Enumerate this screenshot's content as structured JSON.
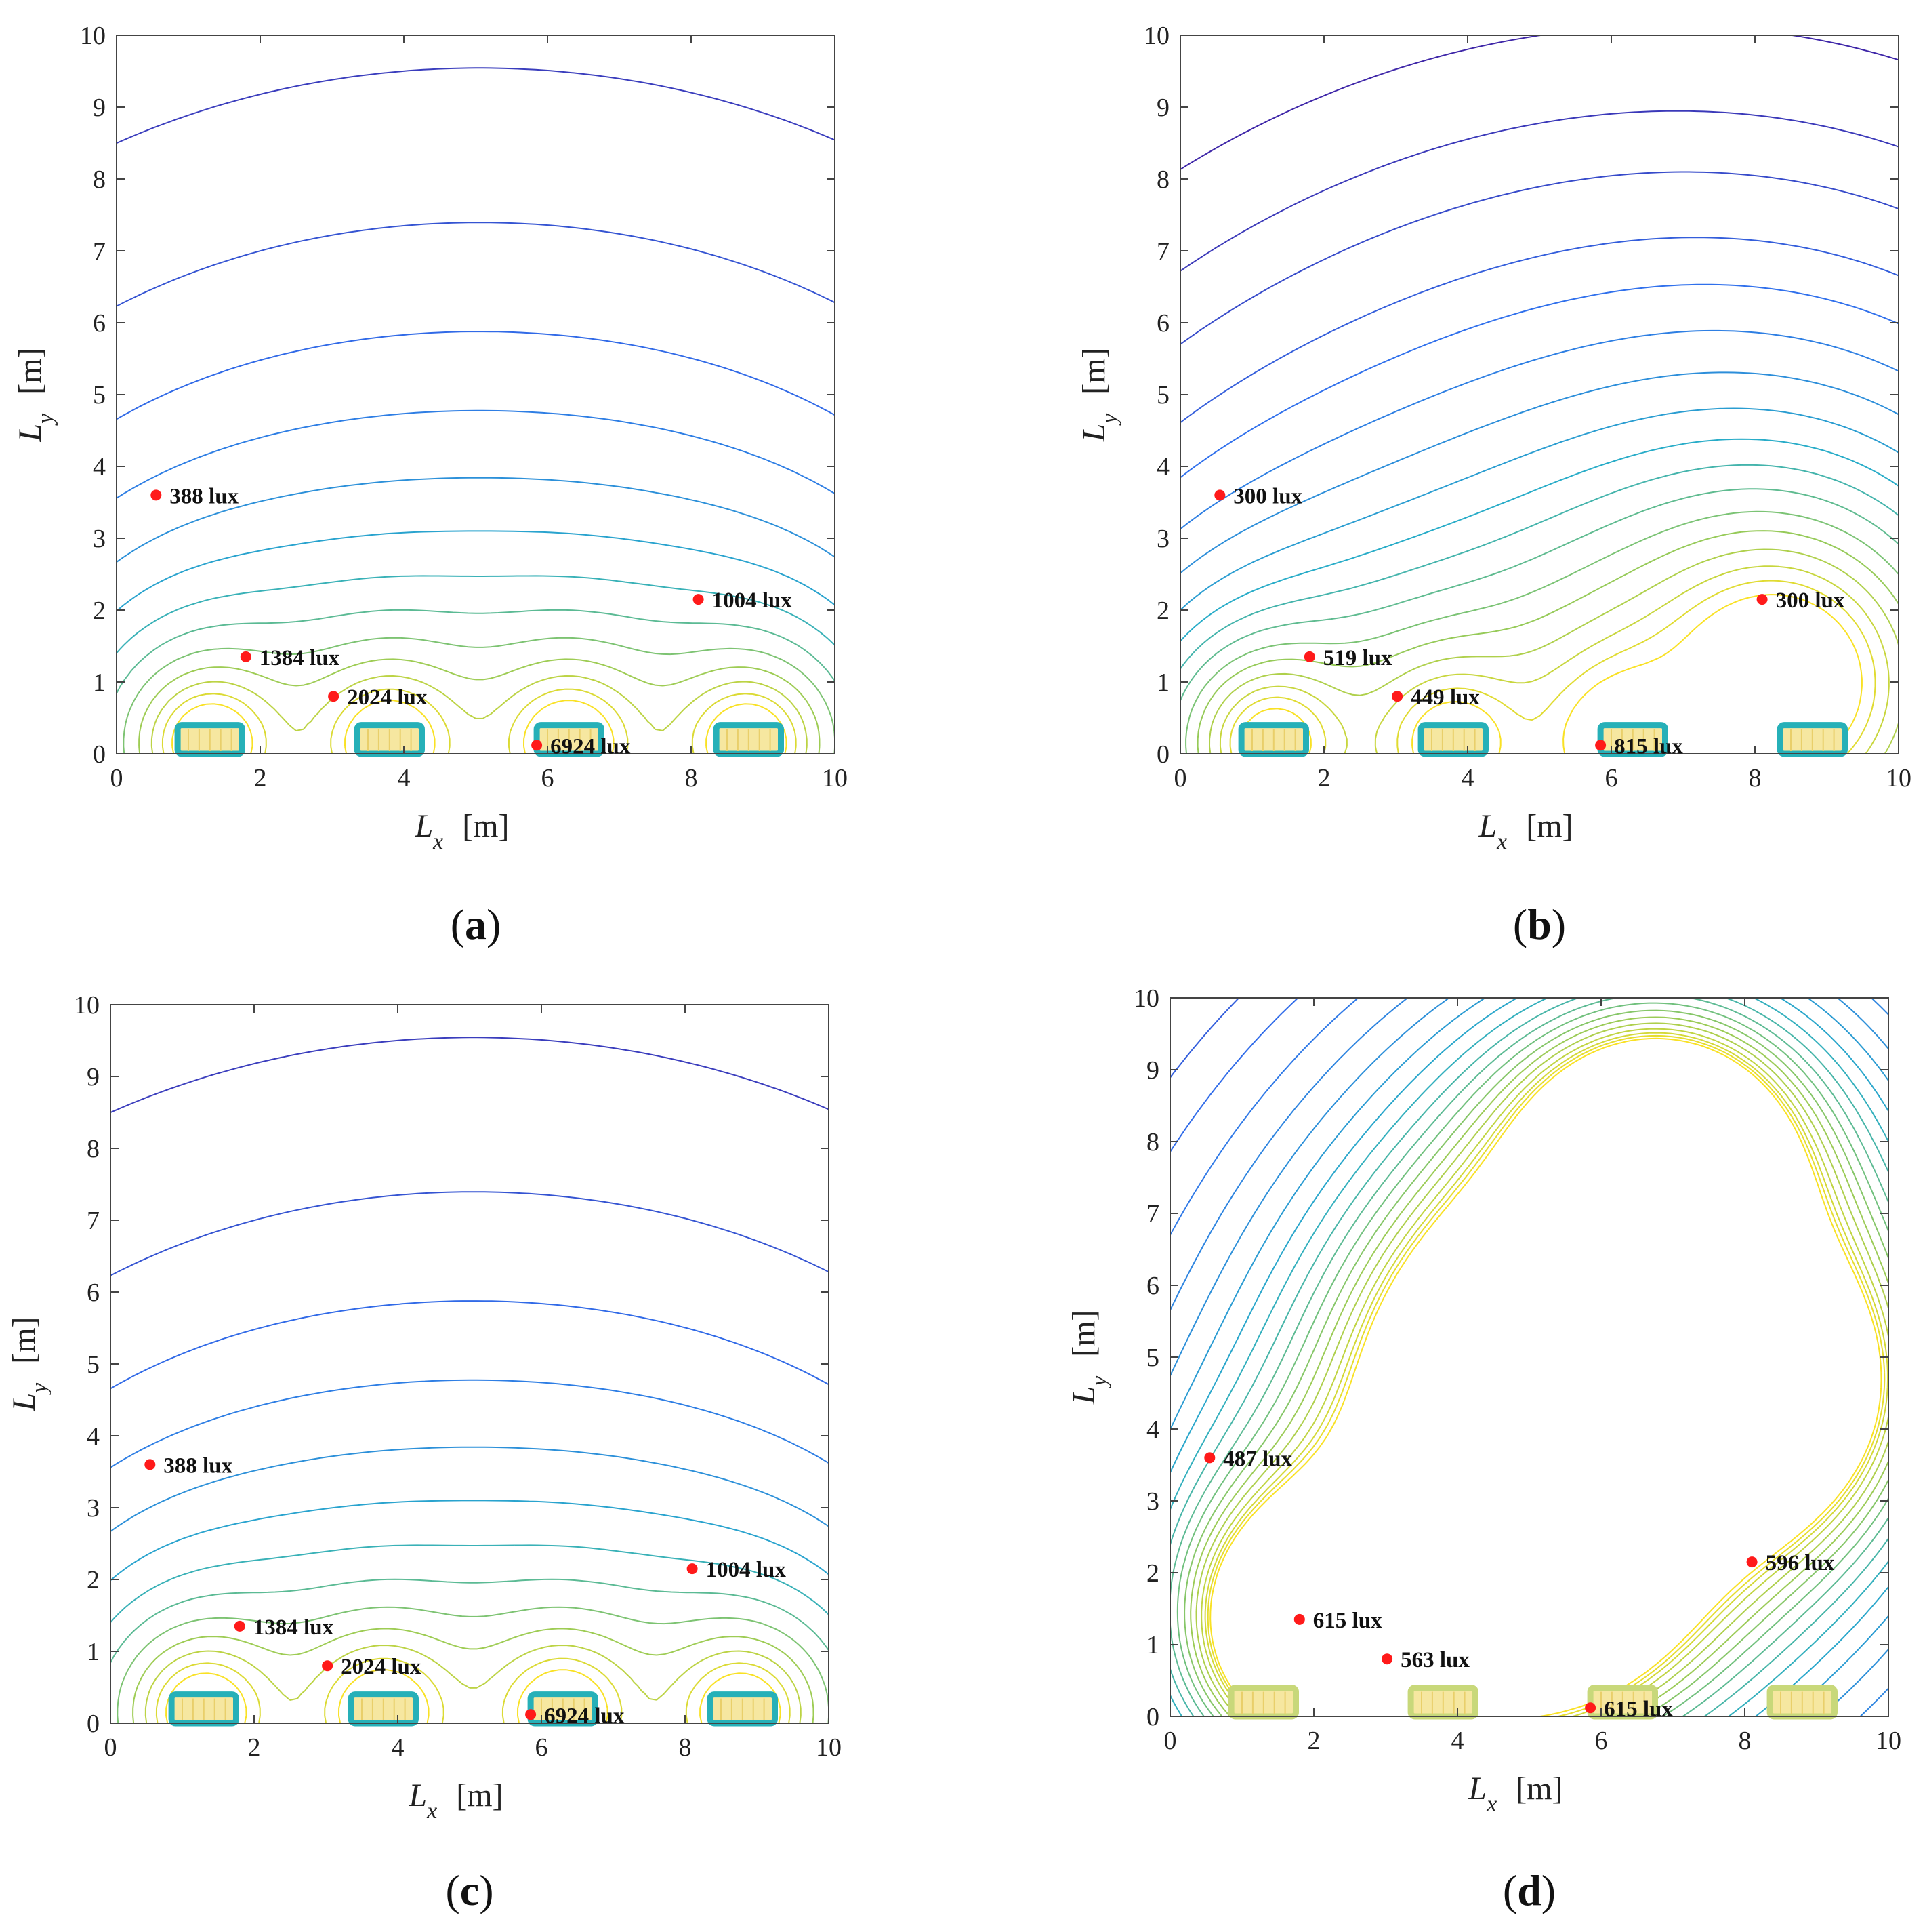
{
  "figure": {
    "axis_labels": {
      "x_sym": "L",
      "x_sub": "x",
      "x_unit": "[m]",
      "y_sym": "L",
      "y_sub": "y",
      "y_unit": "[m]"
    }
  },
  "chart_data": [
    {
      "id": "a",
      "type": "contour",
      "caption": "a",
      "xlabel": "Lx [m]",
      "ylabel": "Ly [m]",
      "xlim": [
        0,
        10
      ],
      "ylim": [
        0,
        10
      ],
      "xticks": [
        "0",
        "2",
        "4",
        "6",
        "8",
        "10"
      ],
      "yticks": [
        "0",
        "1",
        "2",
        "3",
        "4",
        "5",
        "6",
        "7",
        "8",
        "9",
        "10"
      ],
      "luminaires": [
        [
          1.3,
          0.2
        ],
        [
          3.8,
          0.2
        ],
        [
          6.3,
          0.2
        ],
        [
          8.8,
          0.2
        ]
      ],
      "sources": [
        [
          1.3,
          0.15,
          1.2
        ],
        [
          3.8,
          0.15,
          1.2
        ],
        [
          6.3,
          0.15,
          1.2
        ],
        [
          8.8,
          0.15,
          1.2
        ]
      ],
      "levels": [
        0.03,
        0.05,
        0.08,
        0.12,
        0.17,
        0.24,
        0.33,
        0.45,
        0.6,
        0.8,
        1.05,
        1.35,
        1.7,
        2.1
      ],
      "points": [
        {
          "x": 0.55,
          "y": 3.6,
          "label": "388 lux"
        },
        {
          "x": 1.8,
          "y": 1.35,
          "label": "1384 lux"
        },
        {
          "x": 3.02,
          "y": 0.8,
          "label": "2024 lux"
        },
        {
          "x": 5.85,
          "y": 0.12,
          "label": "6924 lux"
        },
        {
          "x": 8.1,
          "y": 2.15,
          "label": "1004 lux"
        }
      ]
    },
    {
      "id": "b",
      "type": "contour",
      "caption": "b",
      "xlabel": "Lx [m]",
      "ylabel": "Ly [m]",
      "xlim": [
        0,
        10
      ],
      "ylim": [
        0,
        10
      ],
      "xticks": [
        "0",
        "2",
        "4",
        "6",
        "8",
        "10"
      ],
      "yticks": [
        "0",
        "1",
        "2",
        "3",
        "4",
        "5",
        "6",
        "7",
        "8",
        "9",
        "10"
      ],
      "luminaires": [
        [
          1.3,
          0.2
        ],
        [
          3.8,
          0.2
        ],
        [
          6.3,
          0.2
        ],
        [
          8.8,
          0.2
        ]
      ],
      "sources": [
        [
          1.3,
          0.15,
          1.0
        ],
        [
          3.8,
          0.15,
          1.0
        ],
        [
          6.3,
          0.15,
          1.6
        ],
        [
          8.3,
          1.0,
          3.2
        ]
      ],
      "levels": [
        0.07,
        0.09,
        0.11,
        0.14,
        0.17,
        0.21,
        0.26,
        0.32,
        0.39,
        0.47,
        0.57,
        0.7,
        0.85,
        1.05,
        1.3,
        1.6,
        2.0
      ],
      "points": [
        {
          "x": 0.55,
          "y": 3.6,
          "label": "300 lux"
        },
        {
          "x": 1.8,
          "y": 1.35,
          "label": "519 lux"
        },
        {
          "x": 3.02,
          "y": 0.8,
          "label": "449 lux"
        },
        {
          "x": 5.85,
          "y": 0.12,
          "label": "815 lux"
        },
        {
          "x": 8.1,
          "y": 2.15,
          "label": "300 lux"
        }
      ]
    },
    {
      "id": "c",
      "type": "contour",
      "caption": "c",
      "xlabel": "Lx [m]",
      "ylabel": "Ly [m]",
      "xlim": [
        0,
        10
      ],
      "ylim": [
        0,
        10
      ],
      "xticks": [
        "0",
        "2",
        "4",
        "6",
        "8",
        "10"
      ],
      "yticks": [
        "0",
        "1",
        "2",
        "3",
        "4",
        "5",
        "6",
        "7",
        "8",
        "9",
        "10"
      ],
      "luminaires": [
        [
          1.3,
          0.2
        ],
        [
          3.8,
          0.2
        ],
        [
          6.3,
          0.2
        ],
        [
          8.8,
          0.2
        ]
      ],
      "sources": [
        [
          1.3,
          0.15,
          1.2
        ],
        [
          3.8,
          0.15,
          1.2
        ],
        [
          6.3,
          0.15,
          1.2
        ],
        [
          8.8,
          0.15,
          1.2
        ]
      ],
      "levels": [
        0.03,
        0.05,
        0.08,
        0.12,
        0.17,
        0.24,
        0.33,
        0.45,
        0.6,
        0.8,
        1.05,
        1.35,
        1.7,
        2.1
      ],
      "points": [
        {
          "x": 0.55,
          "y": 3.6,
          "label": "388 lux"
        },
        {
          "x": 1.8,
          "y": 1.35,
          "label": "1384 lux"
        },
        {
          "x": 3.02,
          "y": 0.8,
          "label": "2024 lux"
        },
        {
          "x": 5.85,
          "y": 0.12,
          "label": "6924 lux"
        },
        {
          "x": 8.1,
          "y": 2.15,
          "label": "1004 lux"
        }
      ]
    },
    {
      "id": "d",
      "type": "contour",
      "caption": "d",
      "xlabel": "Lx [m]",
      "ylabel": "Ly [m]",
      "xlim": [
        0,
        10
      ],
      "ylim": [
        0,
        10
      ],
      "xticks": [
        "0",
        "2",
        "4",
        "6",
        "8",
        "10"
      ],
      "yticks": [
        "0",
        "1",
        "2",
        "3",
        "4",
        "5",
        "6",
        "7",
        "8",
        "9",
        "10"
      ],
      "luminaires": [
        [
          1.3,
          0.2
        ],
        [
          3.8,
          0.2
        ],
        [
          6.3,
          0.2
        ],
        [
          8.8,
          0.2
        ]
      ],
      "sources": [
        [
          5.3,
          4.8,
          3.6
        ],
        [
          5.1,
          2.2,
          2.8
        ],
        [
          7.9,
          4.6,
          2.6
        ],
        [
          2.2,
          1.3,
          2.2
        ],
        [
          6.8,
          7.6,
          2.6
        ]
      ],
      "levels": [
        0.1,
        0.13,
        0.16,
        0.2,
        0.24,
        0.28,
        0.33,
        0.38,
        0.43,
        0.48,
        0.53,
        0.58,
        0.63,
        0.68,
        0.73,
        0.78,
        0.83,
        0.88,
        0.93,
        0.97,
        1.0,
        1.03
      ],
      "points": [
        {
          "x": 0.55,
          "y": 3.6,
          "label": "487 lux"
        },
        {
          "x": 1.8,
          "y": 1.35,
          "label": "615 lux"
        },
        {
          "x": 3.02,
          "y": 0.8,
          "label": "563 lux"
        },
        {
          "x": 5.85,
          "y": 0.12,
          "label": "615 lux"
        },
        {
          "x": 8.1,
          "y": 2.15,
          "label": "596 lux"
        }
      ]
    }
  ]
}
